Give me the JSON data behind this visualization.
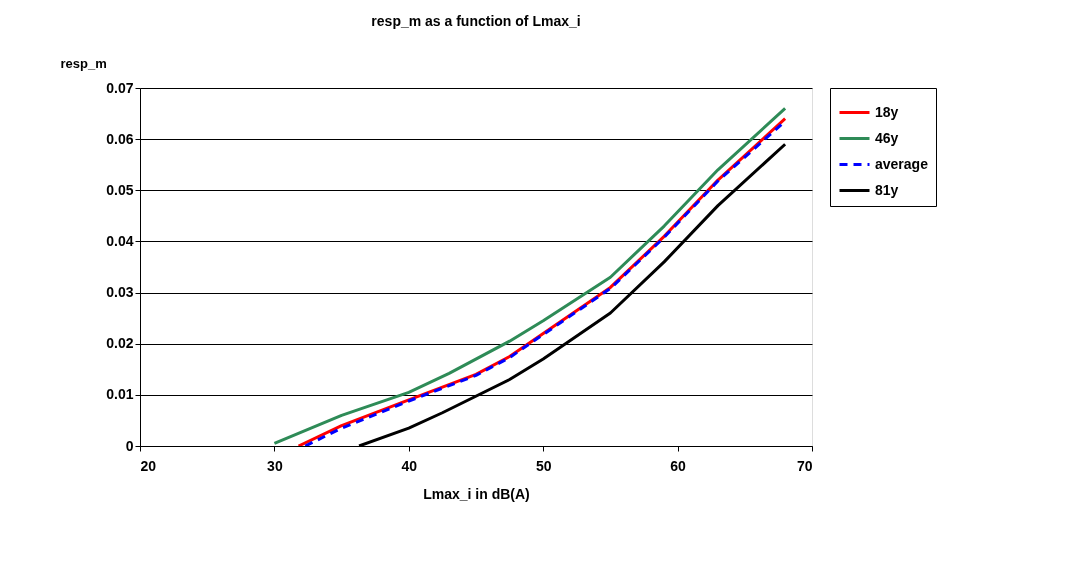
{
  "chart_data": {
    "type": "line",
    "title": "resp_m as a function of Lmax_i",
    "xlabel": "Lmax_i in dB(A)",
    "ylabel": "resp_m",
    "xlim": [
      20,
      70
    ],
    "xticks": [
      20,
      30,
      40,
      50,
      60,
      70
    ],
    "ylim": [
      0,
      0.07
    ],
    "yticks": [
      0,
      0.01,
      0.02,
      0.03,
      0.04,
      0.05,
      0.06,
      0.07
    ],
    "grid": "y",
    "legend": "right",
    "marker": "none",
    "series": [
      {
        "name": "18y",
        "color": "#ff0000",
        "line_style": "solid",
        "x": [
          31.8,
          35,
          40,
          45,
          47.5,
          50,
          55,
          59,
          63,
          68
        ],
        "values": [
          0,
          0.004,
          0.009,
          0.014,
          0.0175,
          0.022,
          0.031,
          0.041,
          0.052,
          0.064
        ]
      },
      {
        "name": "46y",
        "color": "#2e8b57",
        "line_style": "solid",
        "x": [
          30,
          35,
          40,
          43,
          47.5,
          50,
          55,
          59,
          63,
          68
        ],
        "values": [
          0.0005,
          0.006,
          0.0105,
          0.0142,
          0.0205,
          0.0245,
          0.033,
          0.043,
          0.054,
          0.066
        ]
      },
      {
        "name": "average",
        "color": "#0000ff",
        "line_style": "dashed",
        "x": [
          32.3,
          35,
          40,
          45,
          47.5,
          50,
          55,
          59,
          63,
          68
        ],
        "values": [
          0,
          0.0035,
          0.0088,
          0.0138,
          0.0173,
          0.0218,
          0.0308,
          0.0408,
          0.0518,
          0.0635
        ]
      },
      {
        "name": "81y",
        "color": "#000000",
        "line_style": "solid",
        "x": [
          36.3,
          40,
          42.5,
          47.5,
          50,
          55,
          59,
          63,
          68
        ],
        "values": [
          0,
          0.0035,
          0.0065,
          0.013,
          0.017,
          0.026,
          0.036,
          0.047,
          0.059
        ]
      }
    ]
  }
}
